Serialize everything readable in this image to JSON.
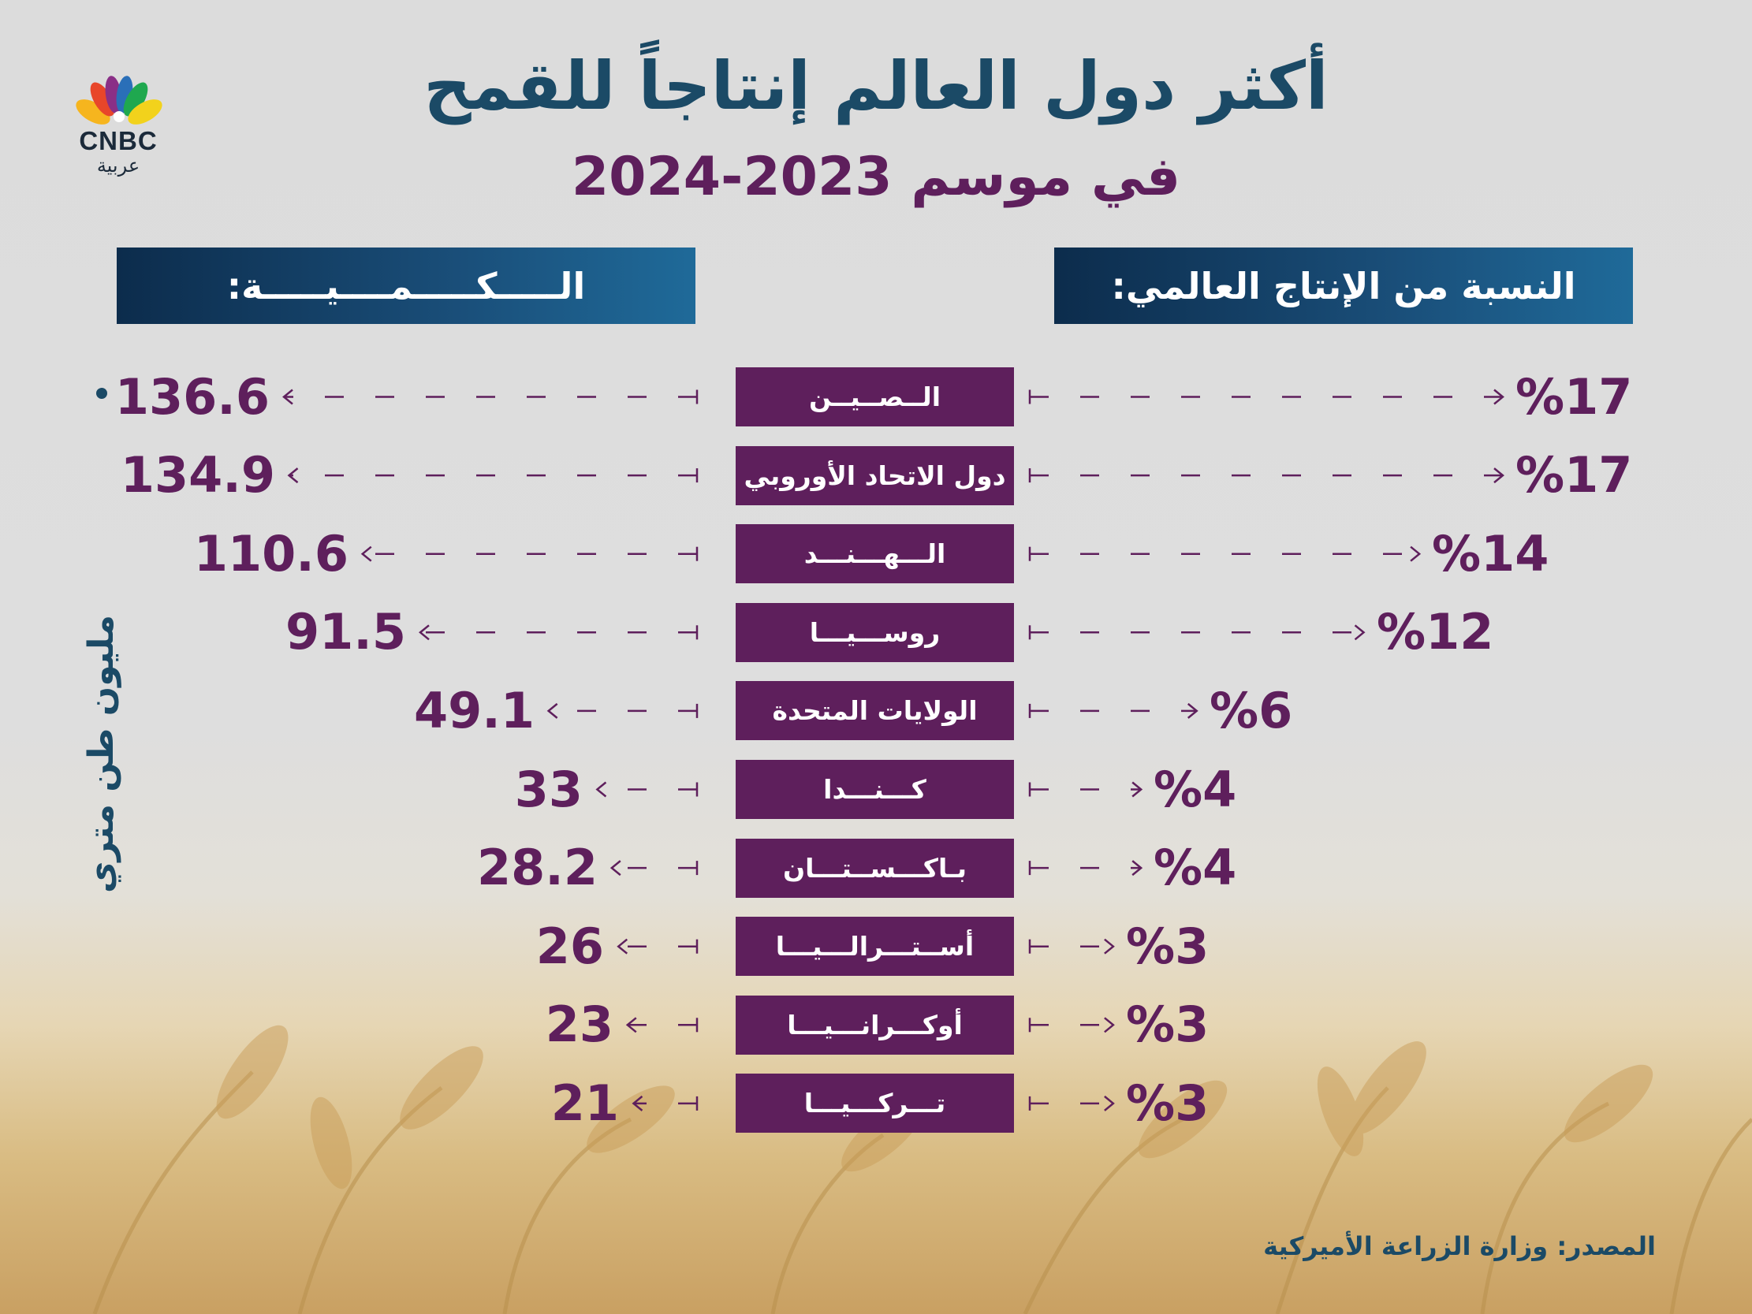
{
  "title": "أكثر دول العالم إنتاجاً للقمح",
  "subtitle": "في موسم  2023-2024",
  "logo": {
    "name": "CNBC",
    "sub": "عربية"
  },
  "headers": {
    "share": "النسبة من الإنتاج العالمي:",
    "quantity": "الـــــكـــــمــــيـــــة:"
  },
  "side_label": "مليون طن متري",
  "source": "المصدر: وزارة الزراعة الأميركية",
  "colors": {
    "navy": "#1b4a66",
    "purple": "#5e1f5c",
    "header_gradient_dark": "#0c2c4c",
    "header_gradient_light": "#1f6a99"
  },
  "chart_data": {
    "type": "bar",
    "categories": [
      "الــصــيــن",
      "دول الاتحاد الأوروبي",
      "الـــهـــنـــد",
      "روســـيـــا",
      "الولايات المتحدة",
      "كـــنـــدا",
      "بـاكـــســتـــان",
      "أســتـــرالـــيـــا",
      "أوكـــرانـــيـــا",
      "تـــركـــيـــا"
    ],
    "series": [
      {
        "values": [
          136.6,
          134.9,
          110.6,
          91.5,
          49.1,
          33,
          28.2,
          26,
          23,
          21
        ]
      },
      {
        "values": [
          17,
          17,
          14,
          12,
          6,
          4,
          4,
          3,
          3,
          3
        ]
      }
    ],
    "labels": {
      "quantity": [
        "136.6",
        "134.9",
        "110.6",
        "91.5",
        "49.1",
        "33",
        "28.2",
        "26",
        "23",
        "21"
      ],
      "share": [
        "%17",
        "%17",
        "%14",
        "%12",
        "%6",
        "%4",
        "%4",
        "%3",
        "%3",
        "%3"
      ]
    },
    "title": "أكثر دول العالم إنتاجاً للقمح",
    "xlabel": "",
    "ylabel": "مليون طن متري",
    "grid": false
  }
}
